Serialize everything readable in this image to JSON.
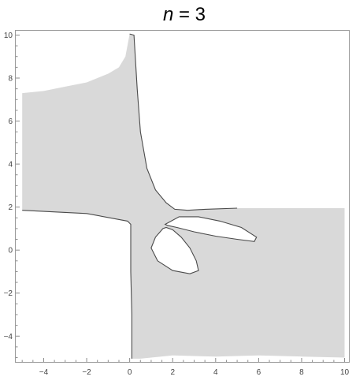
{
  "chart_data": {
    "type": "area",
    "title": {
      "var": "n",
      "rest": " = 3"
    },
    "xlabel": "",
    "ylabel": "",
    "xlim": [
      -5.3,
      10.2
    ],
    "ylim": [
      -5.2,
      10.2
    ],
    "x_ticks_major": [
      -4,
      -2,
      0,
      2,
      4,
      6,
      8,
      10
    ],
    "y_ticks_major": [
      -4,
      -2,
      0,
      2,
      4,
      6,
      8,
      10
    ],
    "x_tick_labels": [
      "−4",
      "−2",
      "0",
      "2",
      "4",
      "6",
      "8",
      "10"
    ],
    "y_tick_labels": [
      "−4",
      "−2",
      "0",
      "2",
      "4",
      "6",
      "8",
      "10"
    ],
    "fill_color": "#d9d9d9",
    "edge_color": "#4a4a4a",
    "grid": false,
    "shaded_region": [
      [
        -5,
        1.85
      ],
      [
        -2,
        1.7
      ],
      [
        -0.1,
        1.35
      ],
      [
        0.05,
        1.2
      ],
      [
        0.05,
        0.5
      ],
      [
        0.05,
        -1
      ],
      [
        0.1,
        -3
      ],
      [
        0.1,
        -5.05
      ],
      [
        0.5,
        -5.05
      ],
      [
        2,
        -4.9
      ],
      [
        4,
        -4.95
      ],
      [
        6,
        -4.9
      ],
      [
        8,
        -4.95
      ],
      [
        10,
        -5.0
      ],
      [
        10,
        1.95
      ],
      [
        7,
        1.95
      ],
      [
        5,
        1.95
      ],
      [
        3.5,
        1.9
      ],
      [
        2.7,
        1.85
      ],
      [
        2.1,
        1.9
      ],
      [
        1.7,
        2.2
      ],
      [
        1.2,
        2.8
      ],
      [
        0.8,
        3.8
      ],
      [
        0.5,
        5.5
      ],
      [
        0.35,
        7.5
      ],
      [
        0.2,
        10.0
      ],
      [
        0,
        10.05
      ],
      [
        -0.2,
        9.0
      ],
      [
        -0.5,
        8.5
      ],
      [
        -1,
        8.2
      ],
      [
        -1.5,
        8.0
      ],
      [
        -2,
        7.8
      ],
      [
        -3,
        7.6
      ],
      [
        -4,
        7.4
      ],
      [
        -5,
        7.3
      ]
    ],
    "holes": [
      [
        [
          1.65,
          1.2
        ],
        [
          2.3,
          1.55
        ],
        [
          3.2,
          1.55
        ],
        [
          4.2,
          1.35
        ],
        [
          5.2,
          1.05
        ],
        [
          5.9,
          0.6
        ],
        [
          5.8,
          0.4
        ],
        [
          5.0,
          0.5
        ],
        [
          4.0,
          0.65
        ],
        [
          3.0,
          0.85
        ],
        [
          2.2,
          1.05
        ],
        [
          1.75,
          1.15
        ]
      ],
      [
        [
          1.55,
          1.0
        ],
        [
          1.2,
          0.6
        ],
        [
          1.0,
          0.1
        ],
        [
          1.3,
          -0.5
        ],
        [
          2.0,
          -0.95
        ],
        [
          2.8,
          -1.1
        ],
        [
          3.2,
          -0.95
        ],
        [
          3.1,
          -0.5
        ],
        [
          2.8,
          0.1
        ],
        [
          2.4,
          0.6
        ],
        [
          2.0,
          0.95
        ],
        [
          1.7,
          1.05
        ]
      ]
    ]
  }
}
